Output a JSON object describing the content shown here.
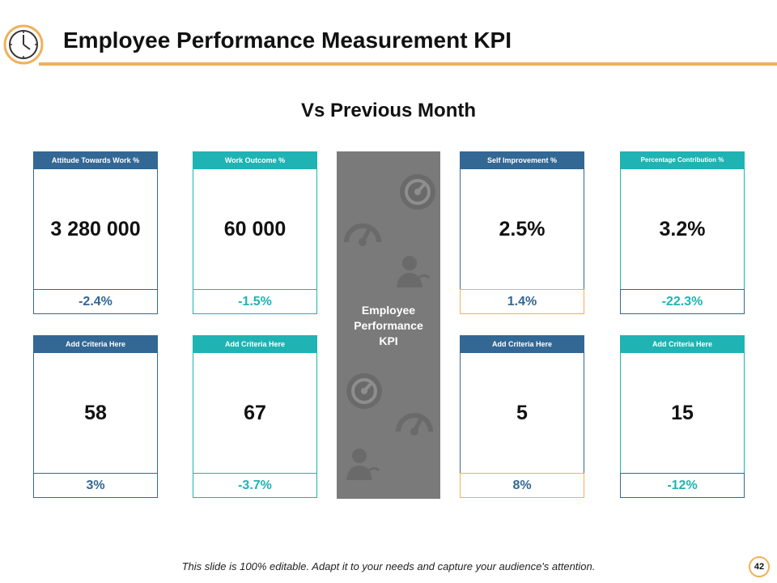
{
  "slide": {
    "title": "Employee Performance Measurement KPI",
    "subtitle": "Vs Previous Month",
    "footer_note": "This slide is 100% editable. Adapt it to your needs and capture your audience's attention.",
    "page_number": "42"
  },
  "colors": {
    "accent_orange": "#f0b15a",
    "dark_blue": "#336794",
    "teal": "#1fb3b3",
    "panel_gray": "#7a7a7a",
    "icon_gray": "#6a6a6a"
  },
  "center_panel": {
    "label_line1": "Employee",
    "label_line2": "Performance",
    "label_line3": "KPI",
    "icons": [
      "speedometer-icon",
      "gauge-icon",
      "person-icon",
      "speedometer-icon",
      "gauge-icon",
      "person-icon"
    ]
  },
  "cards": [
    {
      "header": "Attitude Towards Work %",
      "value": "3 280 000",
      "change": "-2.4%"
    },
    {
      "header": "Work Outcome %",
      "value": "60 000",
      "change": "-1.5%"
    },
    {
      "header": "Self Improvement %",
      "value": "2.5%",
      "change": "1.4%"
    },
    {
      "header": "Percentage Contribution %",
      "value": "3.2%",
      "change": "-22.3%"
    },
    {
      "header": "Add Criteria Here",
      "value": "58",
      "change": "3%"
    },
    {
      "header": "Add Criteria Here",
      "value": "67",
      "change": "-3.7%"
    },
    {
      "header": "Add Criteria Here",
      "value": "5",
      "change": "8%"
    },
    {
      "header": "Add Criteria Here",
      "value": "15",
      "change": "-12%"
    }
  ]
}
